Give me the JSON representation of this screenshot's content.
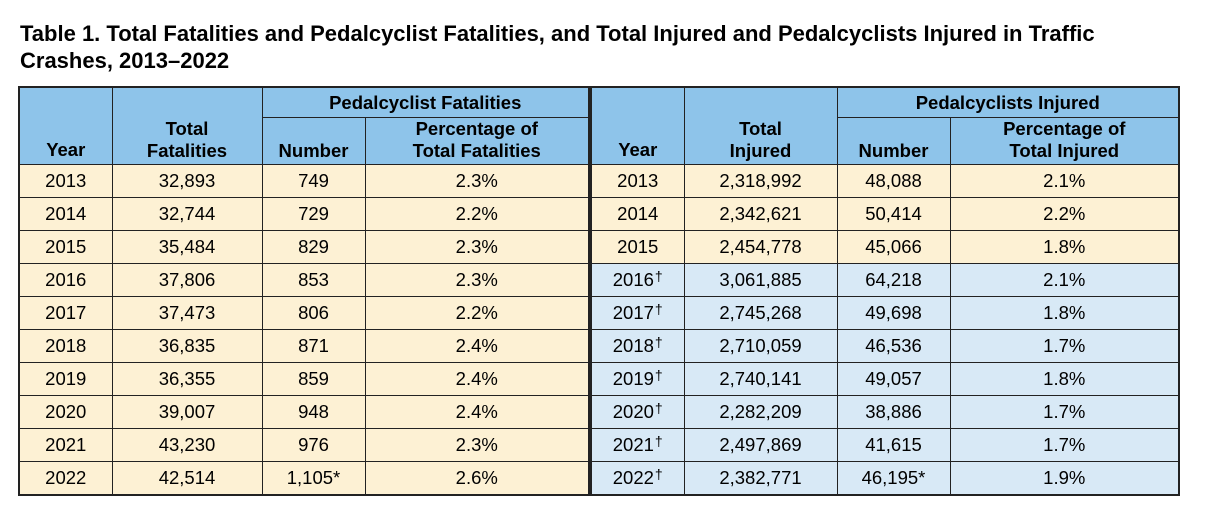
{
  "title": "Table 1. Total Fatalities and Pedalcyclist Fatalities, and Total Injured and Pedalcyclists Injured in Traffic Crashes, 2013–2022",
  "fatalities": {
    "group_header": "Pedalcyclist Fatalities",
    "col_year": "Year",
    "col_total_line1": "Total",
    "col_total_line2": "Fatalities",
    "col_number": "Number",
    "col_pct_line1": "Percentage of",
    "col_pct_line2": "Total Fatalities",
    "rows": [
      {
        "year": "2013",
        "total": "32,893",
        "number": "749",
        "pct": "2.3%"
      },
      {
        "year": "2014",
        "total": "32,744",
        "number": "729",
        "pct": "2.2%"
      },
      {
        "year": "2015",
        "total": "35,484",
        "number": "829",
        "pct": "2.3%"
      },
      {
        "year": "2016",
        "total": "37,806",
        "number": "853",
        "pct": "2.3%"
      },
      {
        "year": "2017",
        "total": "37,473",
        "number": "806",
        "pct": "2.2%"
      },
      {
        "year": "2018",
        "total": "36,835",
        "number": "871",
        "pct": "2.4%"
      },
      {
        "year": "2019",
        "total": "36,355",
        "number": "859",
        "pct": "2.4%"
      },
      {
        "year": "2020",
        "total": "39,007",
        "number": "948",
        "pct": "2.4%"
      },
      {
        "year": "2021",
        "total": "43,230",
        "number": "976",
        "pct": "2.3%"
      },
      {
        "year": "2022",
        "total": "42,514",
        "number": "1,105*",
        "pct": "2.6%"
      }
    ]
  },
  "injured": {
    "group_header": "Pedalcyclists Injured",
    "col_year": "Year",
    "col_total_line1": "Total",
    "col_total_line2": "Injured",
    "col_number": "Number",
    "col_pct_line1": "Percentage of",
    "col_pct_line2": "Total Injured",
    "dagger": "†",
    "rows": [
      {
        "year": "2013",
        "dagger": "",
        "total": "2,318,992",
        "number": "48,088",
        "pct": "2.1%"
      },
      {
        "year": "2014",
        "dagger": "",
        "total": "2,342,621",
        "number": "50,414",
        "pct": "2.2%"
      },
      {
        "year": "2015",
        "dagger": "",
        "total": "2,454,778",
        "number": "45,066",
        "pct": "1.8%"
      },
      {
        "year": "2016",
        "dagger": "†",
        "total": "3,061,885",
        "number": "64,218",
        "pct": "2.1%"
      },
      {
        "year": "2017",
        "dagger": "†",
        "total": "2,745,268",
        "number": "49,698",
        "pct": "1.8%"
      },
      {
        "year": "2018",
        "dagger": "†",
        "total": "2,710,059",
        "number": "46,536",
        "pct": "1.7%"
      },
      {
        "year": "2019",
        "dagger": "†",
        "total": "2,740,141",
        "number": "49,057",
        "pct": "1.8%"
      },
      {
        "year": "2020",
        "dagger": "†",
        "total": "2,282,209",
        "number": "38,886",
        "pct": "1.7%"
      },
      {
        "year": "2021",
        "dagger": "†",
        "total": "2,497,869",
        "number": "41,615",
        "pct": "1.7%"
      },
      {
        "year": "2022",
        "dagger": "†",
        "total": "2,382,771",
        "number": "46,195*",
        "pct": "1.9%"
      }
    ]
  },
  "colors": {
    "header_blue": "#8ec4ea",
    "row_cream": "#fdf1d4",
    "row_light_blue": "#d8e9f6"
  }
}
